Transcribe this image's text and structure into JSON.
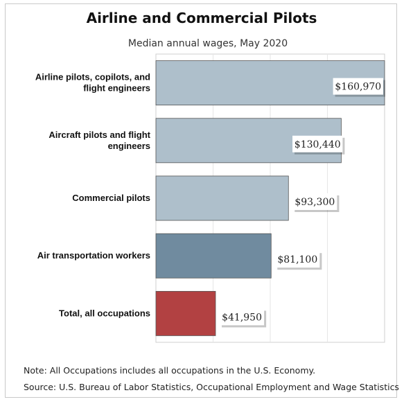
{
  "chart_data": {
    "type": "bar",
    "orientation": "horizontal",
    "title": "Airline and Commercial Pilots",
    "subtitle": "Median annual wages, May 2020",
    "categories": [
      [
        "Airline pilots, copilots, and",
        "flight engineers"
      ],
      [
        "Aircraft pilots and flight",
        "engineers"
      ],
      [
        "Commercial pilots"
      ],
      [
        "Air transportation workers"
      ],
      [
        "Total, all occupations"
      ]
    ],
    "values": [
      160970,
      130440,
      93300,
      81100,
      41950
    ],
    "value_labels": [
      "$160,970",
      "$130,440",
      "$93,300",
      "$81,100",
      "$41,950"
    ],
    "bar_colors": [
      "#aebfcb",
      "#aebfcb",
      "#aebfcb",
      "#708b9f",
      "#b24142"
    ],
    "xlim": [
      0,
      160970
    ],
    "grid": true,
    "xlabel": "",
    "ylabel": ""
  },
  "notes": {
    "note": "Note: All Occupations includes all occupations in the U.S. Economy.",
    "source": "Source: U.S. Bureau of Labor Statistics, Occupational Employment and Wage Statistics"
  }
}
